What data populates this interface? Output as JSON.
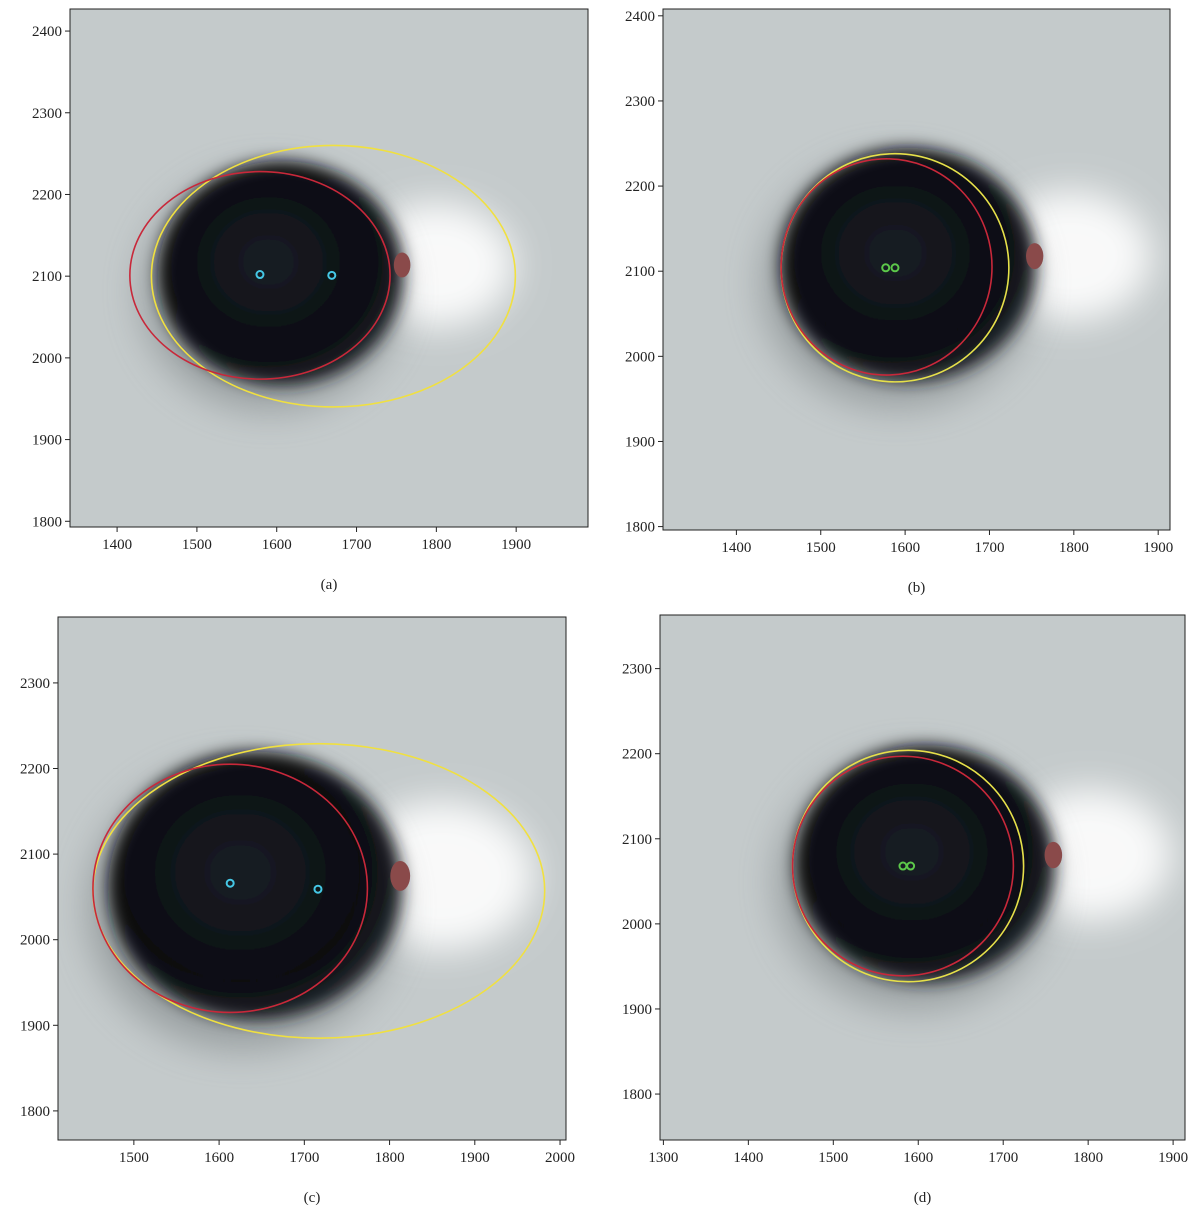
{
  "chart_data": [
    {
      "type": "image",
      "caption": "(a)",
      "xlim": [
        1341,
        1990
      ],
      "ylim": [
        1793,
        2427
      ],
      "xticks": [
        1400,
        1500,
        1600,
        1700,
        1800,
        1900
      ],
      "yticks": [
        1800,
        1900,
        2000,
        2100,
        2200,
        2300,
        2400
      ],
      "ellipses": [
        {
          "color": "#f0e040",
          "cx": 1671,
          "cy": 2100,
          "rx": 228,
          "ry": 160
        },
        {
          "color": "#c8283a",
          "cx": 1579,
          "cy": 2101,
          "rx": 163,
          "ry": 127
        }
      ],
      "points": [
        {
          "color": "#45c8e6",
          "x": 1579,
          "y": 2102
        },
        {
          "color": "#45c8e6",
          "x": 1669,
          "y": 2101
        }
      ]
    },
    {
      "type": "image",
      "caption": "(b)",
      "xlim": [
        1313,
        1914
      ],
      "ylim": [
        1796,
        2408
      ],
      "xticks": [
        1400,
        1500,
        1600,
        1700,
        1800,
        1900
      ],
      "yticks": [
        1800,
        1900,
        2000,
        2100,
        2200,
        2300,
        2400
      ],
      "ellipses": [
        {
          "color": "#e6e04a",
          "cx": 1588,
          "cy": 2104,
          "rx": 135,
          "ry": 134
        },
        {
          "color": "#c8283a",
          "cx": 1578,
          "cy": 2105,
          "rx": 125,
          "ry": 127
        }
      ],
      "points": [
        {
          "color": "#5cc84a",
          "x": 1577,
          "y": 2104
        },
        {
          "color": "#5cc84a",
          "x": 1588,
          "y": 2104
        }
      ]
    },
    {
      "type": "image",
      "caption": "(c)",
      "xlim": [
        1411,
        2007
      ],
      "ylim": [
        1766,
        2377
      ],
      "xticks": [
        1500,
        1600,
        1700,
        1800,
        1900,
        2000
      ],
      "yticks": [
        1800,
        1900,
        2000,
        2100,
        2200,
        2300
      ],
      "ellipses": [
        {
          "color": "#f0e040",
          "cx": 1717,
          "cy": 2057,
          "rx": 265,
          "ry": 172
        },
        {
          "color": "#c8283a",
          "cx": 1613,
          "cy": 2060,
          "rx": 161,
          "ry": 145
        }
      ],
      "points": [
        {
          "color": "#45c8e6",
          "x": 1613,
          "y": 2066
        },
        {
          "color": "#45c8e6",
          "x": 1716,
          "y": 2059
        }
      ]
    },
    {
      "type": "image",
      "caption": "(d)",
      "xlim": [
        1296,
        1914
      ],
      "ylim": [
        1746,
        2363
      ],
      "xticks": [
        1300,
        1400,
        1500,
        1600,
        1700,
        1800,
        1900
      ],
      "yticks": [
        1800,
        1900,
        2000,
        2100,
        2200,
        2300
      ],
      "ellipses": [
        {
          "color": "#e6e04a",
          "cx": 1588,
          "cy": 2068,
          "rx": 136,
          "ry": 136
        },
        {
          "color": "#c8283a",
          "cx": 1582,
          "cy": 2068,
          "rx": 130,
          "ry": 129
        }
      ],
      "points": [
        {
          "color": "#5cc84a",
          "x": 1582,
          "y": 2068
        },
        {
          "color": "#5cc84a",
          "x": 1591,
          "y": 2068
        }
      ]
    }
  ]
}
